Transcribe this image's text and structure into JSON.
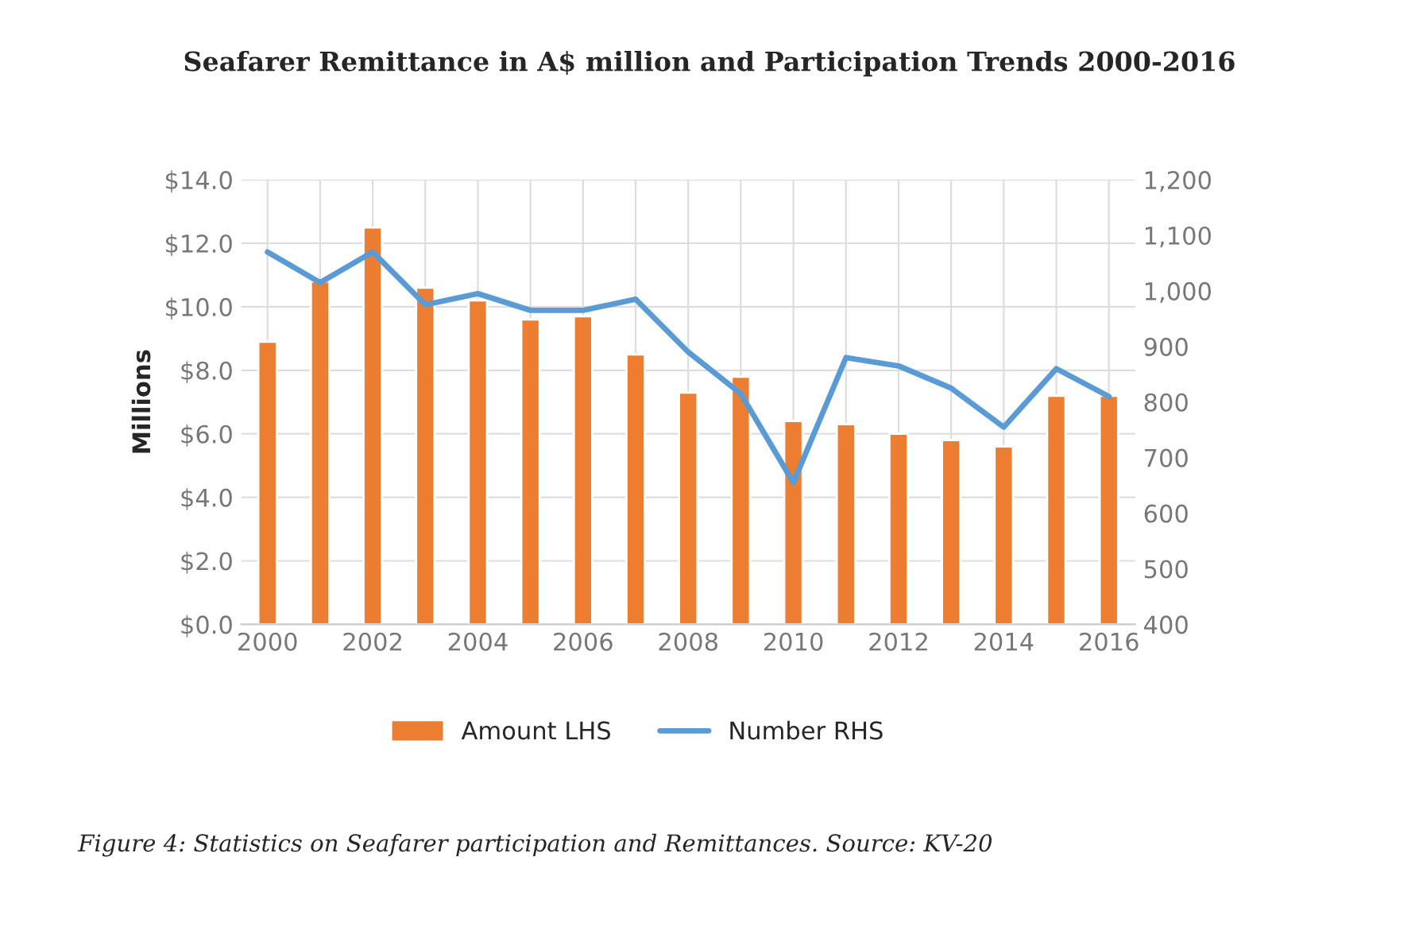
{
  "chart_data": {
    "type": "bar",
    "title": "Seafarer Remittance in A$ million and Participation Trends 2000-2016",
    "ylabel": "Millions",
    "categories": [
      "2000",
      null,
      "2002",
      null,
      "2004",
      null,
      "2006",
      null,
      "2008",
      null,
      "2010",
      null,
      "2012",
      null,
      "2014",
      null,
      "2016"
    ],
    "series": [
      {
        "name": "Amount LHS",
        "color": "#ed7d31",
        "values": [
          8.9,
          10.8,
          12.5,
          10.6,
          10.2,
          9.6,
          9.7,
          8.5,
          7.3,
          7.8,
          6.4,
          6.3,
          6.0,
          5.8,
          5.6,
          7.2,
          7.2
        ]
      },
      {
        "name": "Number RHS",
        "type": "line",
        "axis": "y2",
        "color": "#5b9bd5",
        "values": [
          1070,
          1015,
          1070,
          975,
          995,
          965,
          965,
          985,
          890,
          815,
          655,
          880,
          865,
          825,
          755,
          860,
          810
        ]
      }
    ],
    "ylim": [
      0,
      14
    ],
    "yticks": [
      {
        "value": 0,
        "label": "$0.0"
      },
      {
        "value": 2,
        "label": "$2.0"
      },
      {
        "value": 4,
        "label": "$4.0"
      },
      {
        "value": 6,
        "label": "$6.0"
      },
      {
        "value": 8,
        "label": "$8.0"
      },
      {
        "value": 10,
        "label": "$10.0"
      },
      {
        "value": 12,
        "label": "$12.0"
      },
      {
        "value": 14,
        "label": "$14.0"
      }
    ],
    "y2lim": [
      400,
      1200
    ],
    "y2ticks": [
      400,
      500,
      600,
      700,
      800,
      900,
      {
        "value": 1000,
        "label": "1,000"
      },
      {
        "value": 1100,
        "label": "1,100"
      },
      {
        "value": 1200,
        "label": "1,200"
      }
    ],
    "grid": true,
    "legend": "bottom",
    "annotations": [
      "Figure 4: Statistics on Seafarer participation and Remittances. Source: KV-20"
    ]
  }
}
